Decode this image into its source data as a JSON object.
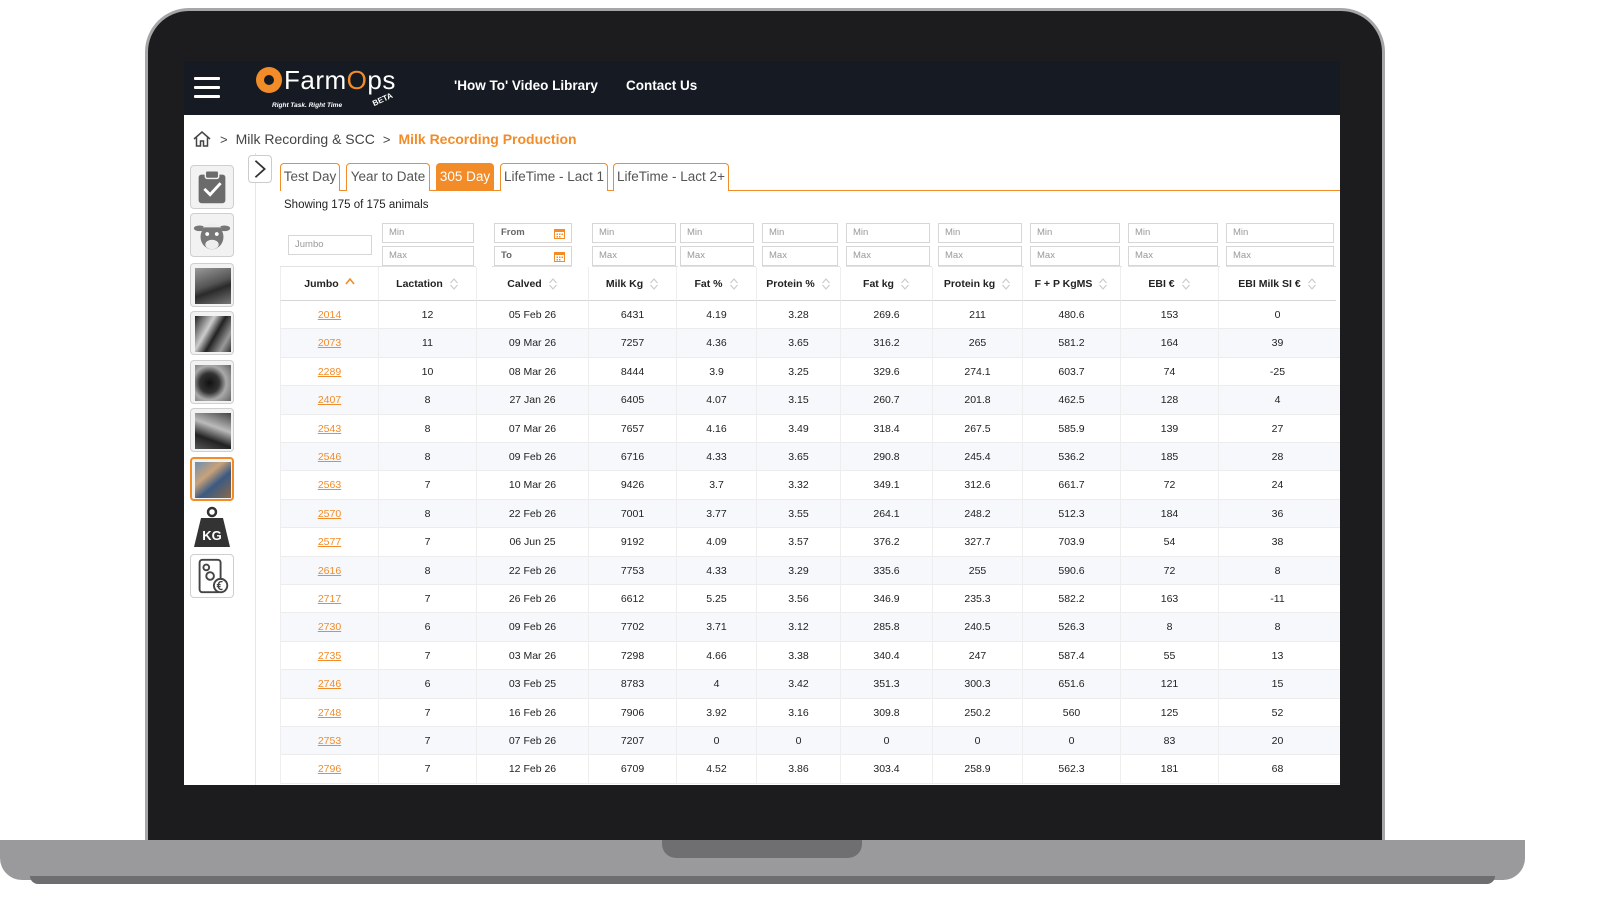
{
  "app": {
    "logo_text_left": "Farm",
    "logo_text_o": "O",
    "logo_text_right": "ps",
    "tagline": "Right Task. Right Time",
    "beta": "BETA"
  },
  "nav": {
    "video_library": "'How To' Video Library",
    "contact": "Contact Us"
  },
  "breadcrumb": {
    "parent": "Milk Recording & SCC",
    "current": "Milk Recording Production",
    "separator": ">"
  },
  "sidebar": {
    "items": [
      {
        "name": "tasks-checklist",
        "active": false
      },
      {
        "name": "cow-profile",
        "active": false
      },
      {
        "name": "herd-photo-1",
        "active": false
      },
      {
        "name": "herd-photo-2",
        "active": false
      },
      {
        "name": "herd-photo-3",
        "active": false
      },
      {
        "name": "herd-photo-4",
        "active": false
      },
      {
        "name": "farmer-photo",
        "active": true
      },
      {
        "name": "weight-kg",
        "active": false
      },
      {
        "name": "finance-report",
        "active": false
      }
    ],
    "kg_label": "KG"
  },
  "tabs": [
    {
      "label": "Test Day",
      "active": false
    },
    {
      "label": "Year to Date",
      "active": false
    },
    {
      "label": "305 Day",
      "active": true
    },
    {
      "label": "LifeTime - Lact 1",
      "active": false
    },
    {
      "label": "LifeTime - Lact 2+",
      "active": false
    }
  ],
  "status": {
    "showing": "Showing 175 of 175 animals"
  },
  "filters": {
    "jumbo_placeholder": "Jumbo",
    "min": "Min",
    "max": "Max",
    "from": "From",
    "to": "To"
  },
  "columns": [
    "Jumbo",
    "Lactation",
    "Calved",
    "Milk Kg",
    "Fat %",
    "Protein %",
    "Fat kg",
    "Protein kg",
    "F + P KgMS",
    "EBI €",
    "EBI Milk SI €"
  ],
  "sort": {
    "column": "Jumbo",
    "direction": "asc"
  },
  "rows": [
    [
      "2014",
      "12",
      "05 Feb 26",
      "6431",
      "4.19",
      "3.28",
      "269.6",
      "211",
      "480.6",
      "153",
      "0"
    ],
    [
      "2073",
      "11",
      "09 Mar 26",
      "7257",
      "4.36",
      "3.65",
      "316.2",
      "265",
      "581.2",
      "164",
      "39"
    ],
    [
      "2289",
      "10",
      "08 Mar 26",
      "8444",
      "3.9",
      "3.25",
      "329.6",
      "274.1",
      "603.7",
      "74",
      "-25"
    ],
    [
      "2407",
      "8",
      "27 Jan 26",
      "6405",
      "4.07",
      "3.15",
      "260.7",
      "201.8",
      "462.5",
      "128",
      "4"
    ],
    [
      "2543",
      "8",
      "07 Mar 26",
      "7657",
      "4.16",
      "3.49",
      "318.4",
      "267.5",
      "585.9",
      "139",
      "27"
    ],
    [
      "2546",
      "8",
      "09 Feb 26",
      "6716",
      "4.33",
      "3.65",
      "290.8",
      "245.4",
      "536.2",
      "185",
      "28"
    ],
    [
      "2563",
      "7",
      "10 Mar 26",
      "9426",
      "3.7",
      "3.32",
      "349.1",
      "312.6",
      "661.7",
      "72",
      "24"
    ],
    [
      "2570",
      "8",
      "22 Feb 26",
      "7001",
      "3.77",
      "3.55",
      "264.1",
      "248.2",
      "512.3",
      "184",
      "36"
    ],
    [
      "2577",
      "7",
      "06 Jun 25",
      "9192",
      "4.09",
      "3.57",
      "376.2",
      "327.7",
      "703.9",
      "54",
      "38"
    ],
    [
      "2616",
      "8",
      "22 Feb 26",
      "7753",
      "4.33",
      "3.29",
      "335.6",
      "255",
      "590.6",
      "72",
      "8"
    ],
    [
      "2717",
      "7",
      "26 Feb 26",
      "6612",
      "5.25",
      "3.56",
      "346.9",
      "235.3",
      "582.2",
      "163",
      "-11"
    ],
    [
      "2730",
      "6",
      "09 Feb 26",
      "7702",
      "3.71",
      "3.12",
      "285.8",
      "240.5",
      "526.3",
      "8",
      "8"
    ],
    [
      "2735",
      "7",
      "03 Mar 26",
      "7298",
      "4.66",
      "3.38",
      "340.4",
      "247",
      "587.4",
      "55",
      "13"
    ],
    [
      "2746",
      "6",
      "03 Feb 25",
      "8783",
      "4",
      "3.42",
      "351.3",
      "300.3",
      "651.6",
      "121",
      "15"
    ],
    [
      "2748",
      "7",
      "16 Feb 26",
      "7906",
      "3.92",
      "3.16",
      "309.8",
      "250.2",
      "560",
      "125",
      "52"
    ],
    [
      "2753",
      "7",
      "07 Feb 26",
      "7207",
      "0",
      "0",
      "0",
      "0",
      "0",
      "83",
      "20"
    ],
    [
      "2796",
      "7",
      "12 Feb 26",
      "6709",
      "4.52",
      "3.86",
      "303.4",
      "258.9",
      "562.3",
      "181",
      "68"
    ]
  ],
  "colors": {
    "accent": "#f28c28",
    "topbar": "#151a23",
    "text": "#222222"
  }
}
